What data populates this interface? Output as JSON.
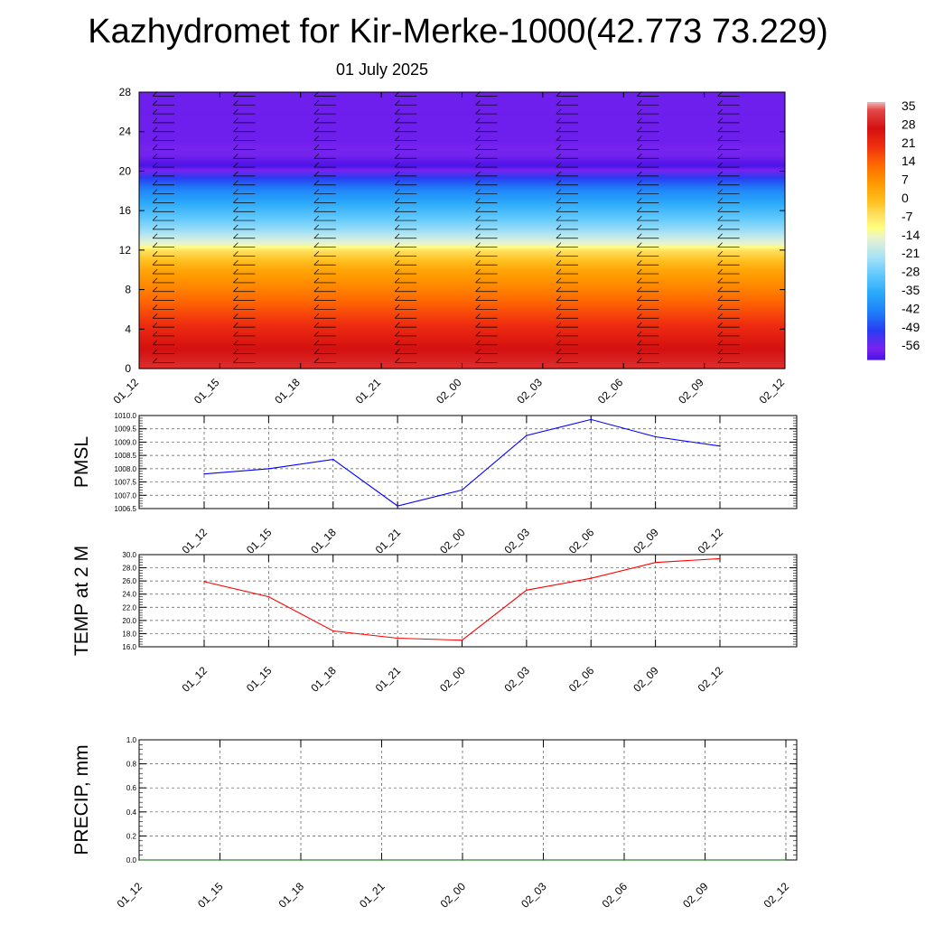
{
  "title": "Kazhydromet for Kir-Merke-1000(42.773 73.229)",
  "subtitle": "01 July 2025",
  "chart_data": [
    {
      "type": "heatmap",
      "name": "upper-air-cross-section",
      "x_ticks": [
        "01_12",
        "01_15",
        "01_18",
        "01_21",
        "02_00",
        "02_03",
        "02_06",
        "02_09",
        "02_12"
      ],
      "y_ticks": [
        0,
        4,
        8,
        12,
        16,
        20,
        24,
        28
      ],
      "ylim": [
        0,
        28
      ],
      "colorbar_labels": [
        "35",
        "28",
        "21",
        "14",
        "7",
        "0",
        "-7",
        "-14",
        "-21",
        "-28",
        "-35",
        "-42",
        "-49",
        "-56"
      ],
      "colorbar_range": [
        -60,
        38
      ],
      "temperature_profile": [
        {
          "y": 0,
          "t": 32
        },
        {
          "y": 2,
          "t": 28
        },
        {
          "y": 4,
          "t": 23
        },
        {
          "y": 6,
          "t": 17
        },
        {
          "y": 8,
          "t": 11
        },
        {
          "y": 10,
          "t": 5
        },
        {
          "y": 12,
          "t": -5
        },
        {
          "y": 12.6,
          "t": -13
        },
        {
          "y": 14,
          "t": -22
        },
        {
          "y": 16,
          "t": -31
        },
        {
          "y": 18,
          "t": -40
        },
        {
          "y": 19.5,
          "t": -50
        },
        {
          "y": 20.6,
          "t": -60
        },
        {
          "y": 22,
          "t": -55
        },
        {
          "y": 23,
          "t": -57
        },
        {
          "y": 28,
          "t": -57
        }
      ],
      "colors": {
        "c-60": "#4a14e8",
        "c-56": "#7a22ee",
        "c-49": "#2a3cf2",
        "c-42": "#1e7ef8",
        "c-35": "#2aa8fa",
        "c-28": "#5ec8fc",
        "c-21": "#a8e2f6",
        "c-14": "#e6f3d2",
        "c-10": "#ffff80",
        "c-5": "#ffe060",
        "c0": "#ffc020",
        "c7": "#ff9a00",
        "c14": "#ff6a00",
        "c21": "#f03010",
        "c28": "#d41010",
        "c35": "#e24a4a",
        "c38": "#f0b8b8"
      }
    },
    {
      "type": "line",
      "name": "pmsl",
      "ylabel": "PMSL",
      "x": [
        "01_12",
        "01_15",
        "01_18",
        "01_21",
        "02_00",
        "02_03",
        "02_06",
        "02_09",
        "02_12"
      ],
      "values": [
        1007.8,
        1008.0,
        1008.35,
        1006.6,
        1007.2,
        1009.25,
        1009.85,
        1009.2,
        1008.85
      ],
      "y_ticks": [
        "1006.5",
        "1007.0",
        "1007.5",
        "1008.0",
        "1008.5",
        "1009.0",
        "1009.5",
        "1010.0"
      ],
      "ylim": [
        1006.5,
        1010.0
      ],
      "color": "#0000ff"
    },
    {
      "type": "line",
      "name": "temp-2m",
      "ylabel": "TEMP at 2 M",
      "x": [
        "01_12",
        "01_15",
        "01_18",
        "01_21",
        "02_00",
        "02_03",
        "02_06",
        "02_09",
        "02_12"
      ],
      "values": [
        25.9,
        23.6,
        18.4,
        17.3,
        17.0,
        24.6,
        26.4,
        28.8,
        29.4
      ],
      "y_ticks": [
        "16.0",
        "18.0",
        "20.0",
        "22.0",
        "24.0",
        "26.0",
        "28.0",
        "30.0"
      ],
      "ylim": [
        16.0,
        30.0
      ],
      "color": "#ff0000"
    },
    {
      "type": "line",
      "name": "precip",
      "ylabel": "PRECIP, mm",
      "x_ticks": [
        "01_12",
        "01_15",
        "01_18",
        "01_21",
        "02_00",
        "02_03",
        "02_06",
        "02_09",
        "02_12"
      ],
      "values": [
        0,
        0,
        0,
        0,
        0,
        0,
        0,
        0,
        0
      ],
      "y_ticks": [
        "0.0",
        "0.2",
        "0.4",
        "0.6",
        "0.8",
        "1.0"
      ],
      "ylim": [
        0.0,
        1.0
      ],
      "color": "#006400"
    }
  ]
}
